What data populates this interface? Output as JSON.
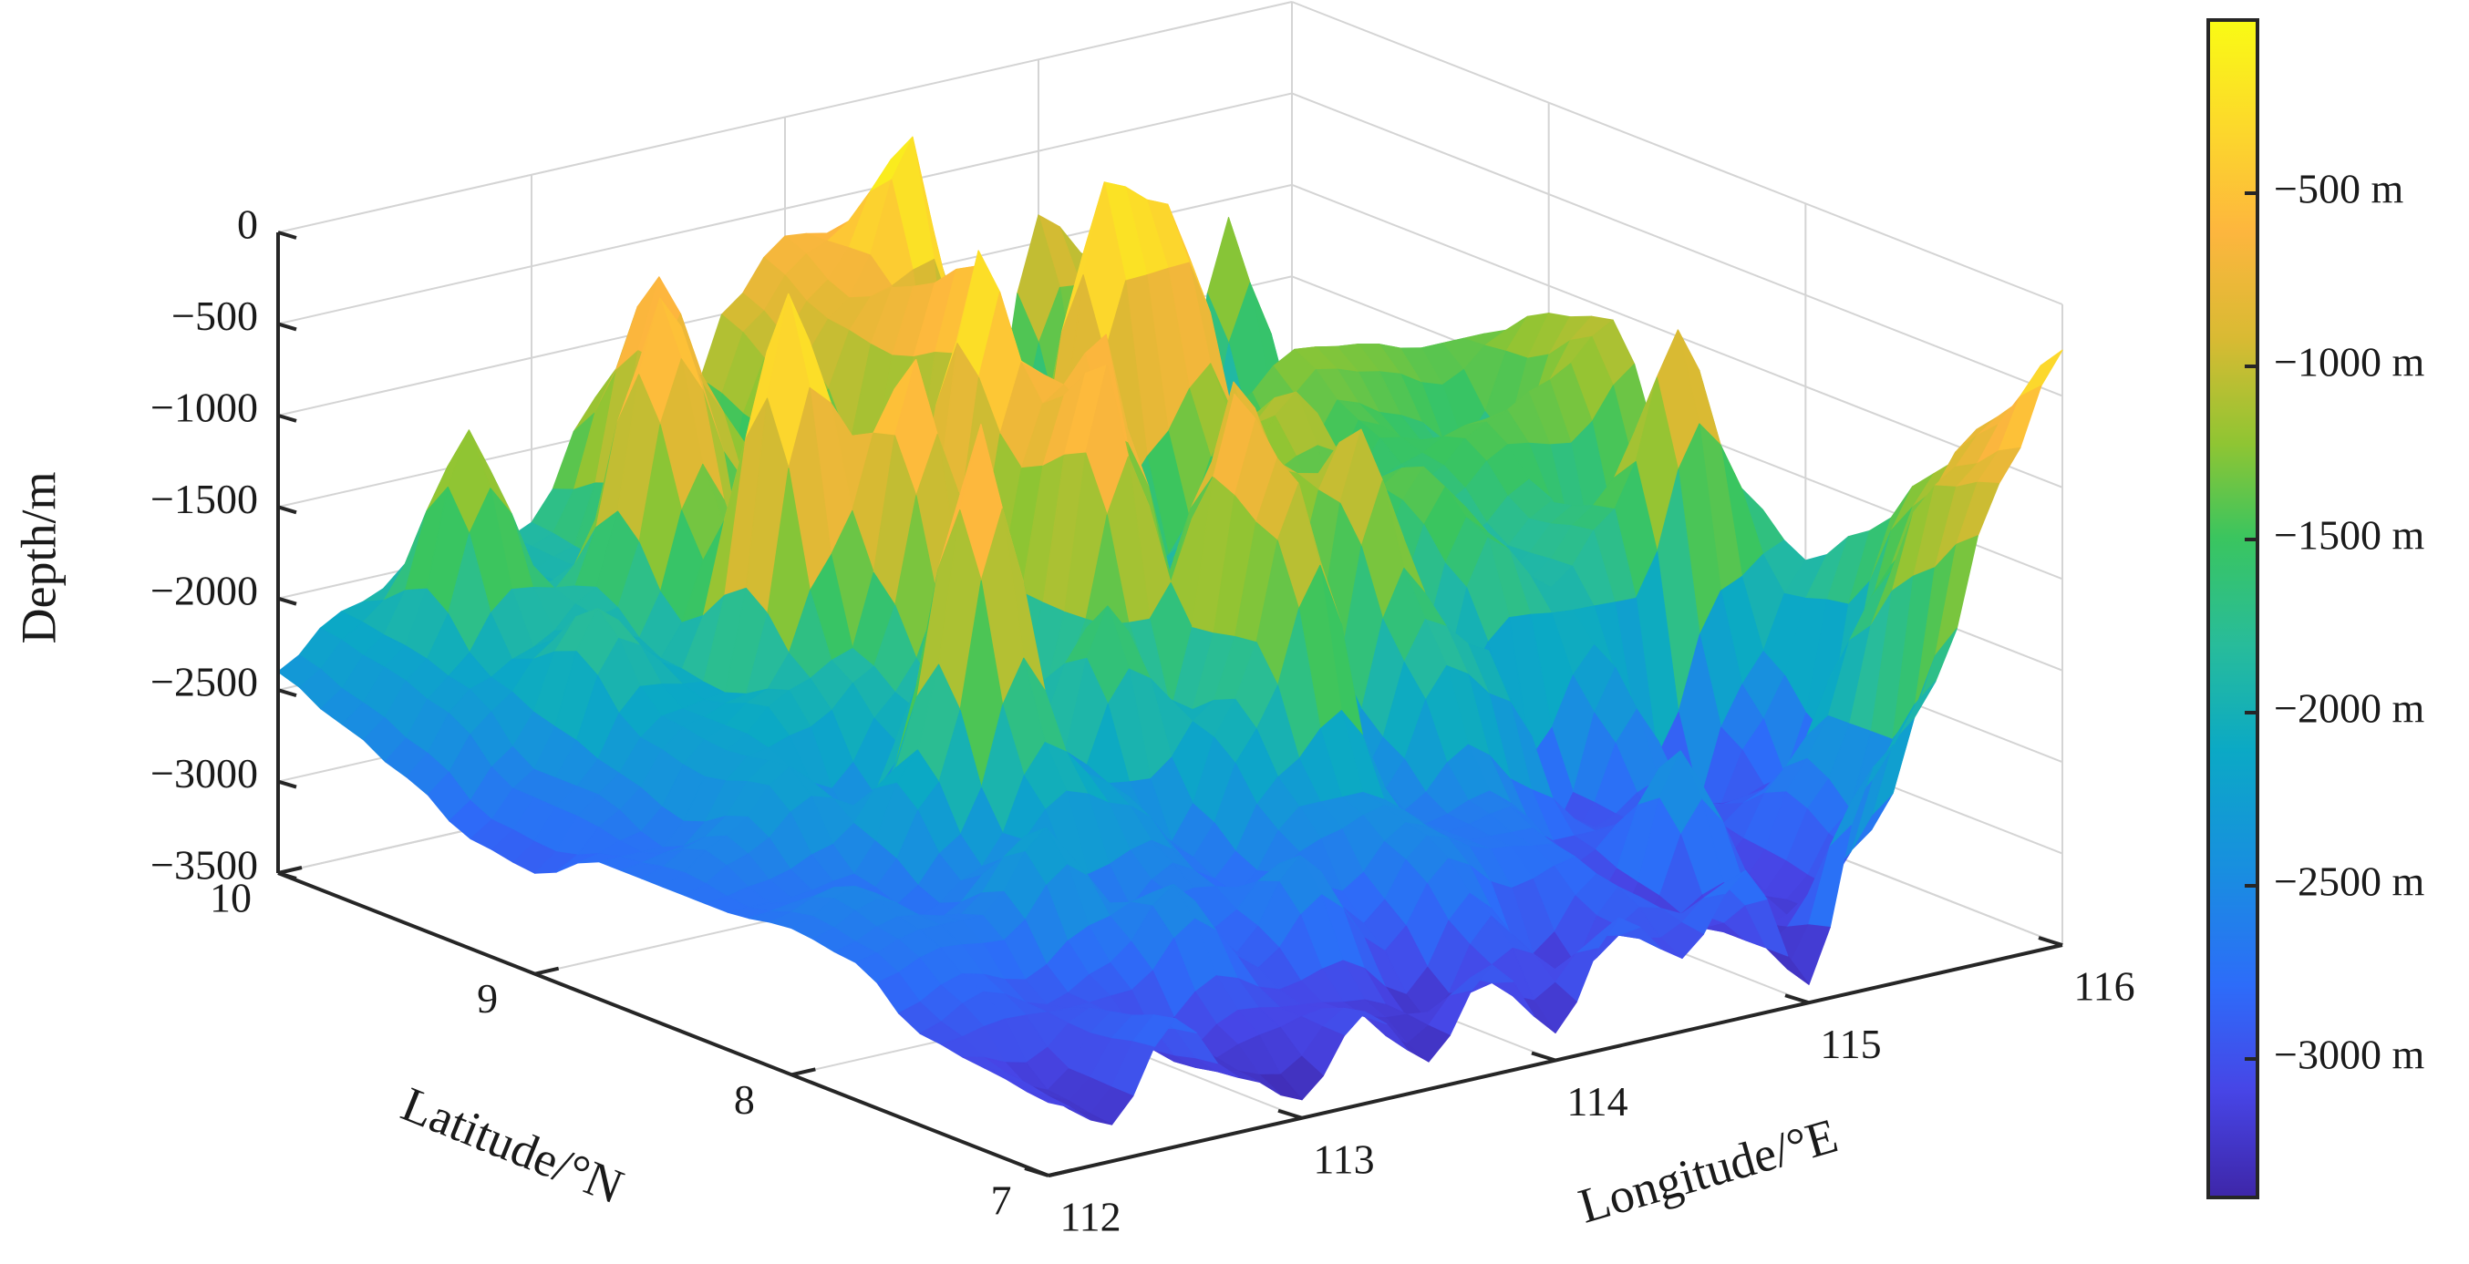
{
  "chart_data": {
    "type": "surface3d",
    "title": "",
    "xlabel": "Longitude/°E",
    "ylabel": "Latitude/°N",
    "zlabel": "Depth/m",
    "xlim": [
      112,
      116
    ],
    "ylim": [
      7,
      10
    ],
    "zlim": [
      -3500,
      0
    ],
    "x_ticks": [
      "112",
      "113",
      "114",
      "115",
      "116"
    ],
    "x_tick_values": [
      112,
      113,
      114,
      115,
      116
    ],
    "y_ticks": [
      "7",
      "8",
      "9",
      "10"
    ],
    "y_tick_values": [
      7,
      8,
      9,
      10
    ],
    "z_ticks": [
      "0",
      "−500",
      "−1000",
      "−1500",
      "−2000",
      "−2500",
      "−3000",
      "−3500"
    ],
    "z_tick_values": [
      0,
      -500,
      -1000,
      -1500,
      -2000,
      -2500,
      -3000,
      -3500
    ],
    "grid": true,
    "colormap": "parula",
    "colorbar": {
      "range": [
        -3400,
        0
      ],
      "ticks": [
        "−500 m",
        "−1000 m",
        "−1500 m",
        "−2000 m",
        "−2500 m",
        "−3000 m"
      ],
      "tick_values": [
        -500,
        -1000,
        -1500,
        -2000,
        -2500,
        -3000
      ],
      "colors": [
        "#3e26a8",
        "#4745e6",
        "#2d6cf9",
        "#188fdf",
        "#0ba9c5",
        "#28bc9a",
        "#3ac55f",
        "#8fc533",
        "#d9ba33",
        "#fdb63e",
        "#fcd92b",
        "#f9fb14"
      ]
    },
    "surface": {
      "longitude": [
        112.0,
        112.25,
        112.5,
        112.75,
        113.0,
        113.25,
        113.5,
        113.75,
        114.0,
        114.25,
        114.5,
        114.75,
        115.0,
        115.25,
        115.5,
        115.75,
        116.0
      ],
      "latitude": [
        10.0,
        9.75,
        9.5,
        9.25,
        9.0,
        8.75,
        8.5,
        8.25,
        8.0,
        7.75,
        7.5,
        7.25,
        7.0
      ],
      "depth": [
        [
          -2400,
          -2150,
          -2050,
          -2100,
          -1900,
          -1300,
          -2250,
          -1000,
          -650,
          -700,
          -300,
          -2400,
          -850,
          -1200,
          -2600,
          -1100,
          -2650
        ],
        [
          -2550,
          -2200,
          -1100,
          -2050,
          -1950,
          -500,
          -2200,
          -1200,
          -850,
          -50,
          -2150,
          -1900,
          -2200,
          -1400,
          -2550,
          -2300,
          -2400
        ],
        [
          -2700,
          -2300,
          -2150,
          -1900,
          -400,
          -1100,
          -1850,
          -2000,
          -650,
          -2450,
          -1800,
          -2300,
          -1850,
          -2500,
          -2400,
          -2250,
          -2200
        ],
        [
          -2900,
          -2600,
          -1800,
          -2150,
          -1500,
          -2400,
          -1900,
          -2150,
          -400,
          -1950,
          -100,
          -300,
          -1500,
          -1250,
          -1300,
          -1400,
          -1400
        ],
        [
          -2950,
          -2600,
          -2250,
          -2200,
          -100,
          -1200,
          -1950,
          -100,
          -2300,
          -2200,
          -2000,
          -1350,
          -2400,
          -1500,
          -1700,
          -2000,
          -1150
        ],
        [
          -2750,
          -2750,
          -2300,
          -2050,
          -1900,
          -400,
          -2050,
          -800,
          -500,
          -2550,
          -1450,
          -1050,
          -1600,
          -1700,
          -1450,
          -1300,
          -1050
        ],
        [
          -2750,
          -2550,
          -2250,
          -2650,
          -2100,
          -1800,
          -2200,
          -450,
          -2600,
          -700,
          -1350,
          -2000,
          -1400,
          -2000,
          -1750,
          -2450,
          -1800
        ],
        [
          -2750,
          -2750,
          -2700,
          -2100,
          -400,
          -2550,
          -1550,
          -2200,
          -550,
          -2350,
          -900,
          -2600,
          -1650,
          -2000,
          -1650,
          -750,
          -1700
        ],
        [
          -2700,
          -2550,
          -2800,
          -2600,
          -2000,
          -2300,
          -2700,
          -2000,
          -900,
          -2600,
          -1800,
          -2050,
          -3150,
          -2300,
          -3350,
          -2550,
          -1950
        ],
        [
          -2750,
          -2650,
          -2650,
          -2250,
          -2850,
          -2600,
          -2850,
          -2450,
          -2450,
          -2700,
          -2600,
          -2950,
          -2950,
          -3000,
          -2950,
          -3100,
          -1650
        ],
        [
          -3000,
          -2850,
          -3000,
          -2850,
          -2500,
          -2950,
          -2500,
          -2950,
          -2550,
          -2700,
          -2750,
          -3300,
          -2400,
          -3200,
          -2600,
          -1800,
          -1200
        ],
        [
          -3050,
          -3250,
          -2900,
          -3250,
          -3050,
          -3100,
          -3150,
          -3350,
          -2850,
          -3350,
          -2850,
          -3150,
          -3250,
          -3200,
          -2850,
          -1050,
          -750
        ],
        [
          -3100,
          -3300,
          -2800,
          -3200,
          -3400,
          -3000,
          -3350,
          -2900,
          -3350,
          -2800,
          -3100,
          -2700,
          -3400,
          -2300,
          -1900,
          -900,
          -250
        ]
      ]
    }
  }
}
